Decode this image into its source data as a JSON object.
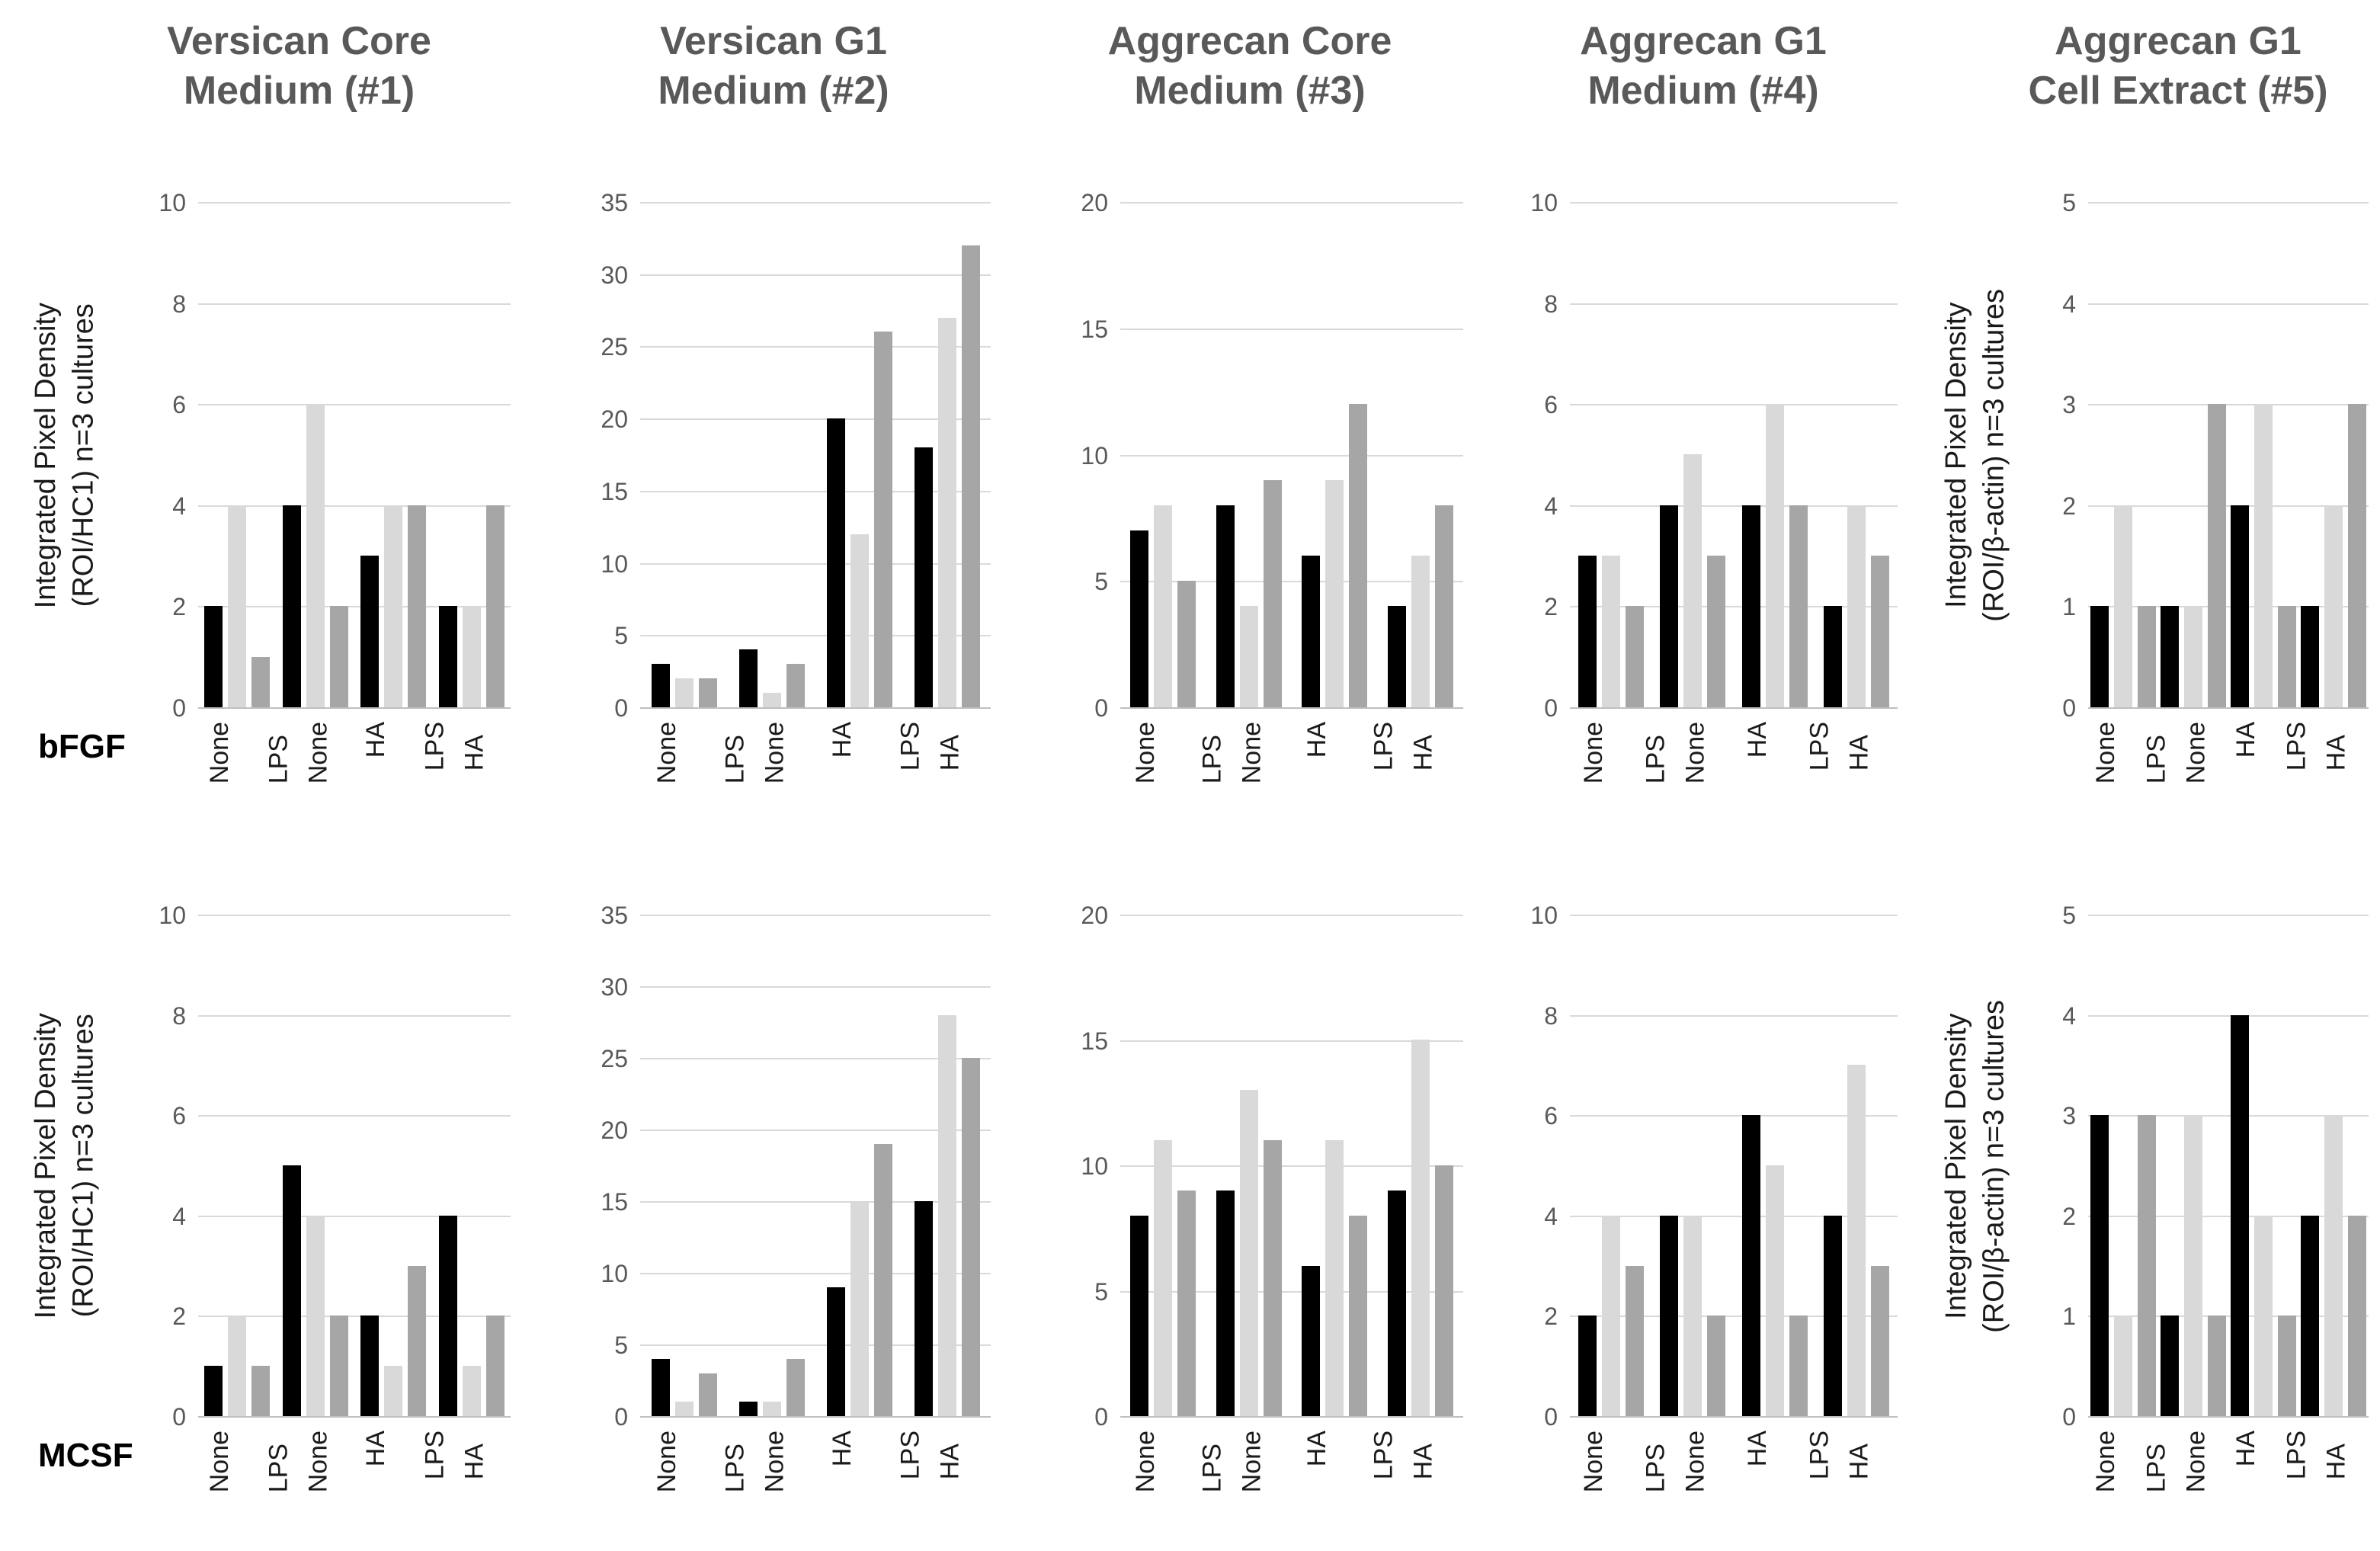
{
  "row_labels": [
    "bFGF",
    "MCSF"
  ],
  "series_colors": [
    "#000000",
    "#d9d9d9",
    "#a6a6a6"
  ],
  "series_names": [
    "black",
    "light gray",
    "medium gray"
  ],
  "text_colors": {
    "title": "#595959",
    "ticks": "#595959",
    "labels": "#1a1a1a",
    "gridline": "#d9d9d9"
  },
  "chart_data": [
    {
      "type": "bar",
      "row": "bFGF",
      "title": "Versican Core Medium (#1)",
      "title_lines": [
        "Versican Core",
        "Medium (#1)"
      ],
      "ylabel": "Integrated Pixel Density (ROI/HC1) n=3 cultures",
      "ylabel_lines": [
        "Integrated Pixel Density",
        "(ROI/HC1) n=3 cultures"
      ],
      "ylim": [
        0,
        10
      ],
      "yticks": [
        0,
        2,
        4,
        6,
        8,
        10
      ],
      "grid": true,
      "legend": "none",
      "categories": [
        "None",
        "LPS None",
        "HA",
        "LPS HA"
      ],
      "cat_label_lines": [
        [
          "None"
        ],
        [
          "LPS",
          "None"
        ],
        [
          "HA"
        ],
        [
          "LPS",
          "HA"
        ]
      ],
      "series": [
        {
          "name": "black",
          "values": [
            2,
            4,
            3,
            2
          ]
        },
        {
          "name": "light gray",
          "values": [
            4,
            6,
            4,
            2
          ]
        },
        {
          "name": "medium gray",
          "values": [
            1,
            2,
            4,
            4
          ]
        }
      ]
    },
    {
      "type": "bar",
      "row": "bFGF",
      "title": "Versican G1 Medium (#2)",
      "title_lines": [
        "Versican G1",
        "Medium (#2)"
      ],
      "ylim": [
        0,
        35
      ],
      "yticks": [
        0,
        5,
        10,
        15,
        20,
        25,
        30,
        35
      ],
      "grid": true,
      "legend": "none",
      "categories": [
        "None",
        "LPS None",
        "HA",
        "LPS HA"
      ],
      "cat_label_lines": [
        [
          "None"
        ],
        [
          "LPS",
          "None"
        ],
        [
          "HA"
        ],
        [
          "LPS",
          "HA"
        ]
      ],
      "series": [
        {
          "name": "black",
          "values": [
            3,
            4,
            20,
            18
          ]
        },
        {
          "name": "light gray",
          "values": [
            2,
            1,
            12,
            27
          ]
        },
        {
          "name": "medium gray",
          "values": [
            2,
            3,
            26,
            32
          ]
        }
      ]
    },
    {
      "type": "bar",
      "row": "bFGF",
      "title": "Aggrecan Core Medium (#3)",
      "title_lines": [
        "Aggrecan Core",
        "Medium (#3)"
      ],
      "ylim": [
        0,
        20
      ],
      "yticks": [
        0,
        5,
        10,
        15,
        20
      ],
      "grid": true,
      "legend": "none",
      "categories": [
        "None",
        "LPS None",
        "HA",
        "LPS HA"
      ],
      "cat_label_lines": [
        [
          "None"
        ],
        [
          "LPS",
          "None"
        ],
        [
          "HA"
        ],
        [
          "LPS",
          "HA"
        ]
      ],
      "series": [
        {
          "name": "black",
          "values": [
            7,
            8,
            6,
            4
          ]
        },
        {
          "name": "light gray",
          "values": [
            8,
            4,
            9,
            6
          ]
        },
        {
          "name": "medium gray",
          "values": [
            5,
            9,
            12,
            8
          ]
        }
      ]
    },
    {
      "type": "bar",
      "row": "bFGF",
      "title": "Aggrecan G1 Medium (#4)",
      "title_lines": [
        "Aggrecan G1",
        "Medium (#4)"
      ],
      "ylim": [
        0,
        10
      ],
      "yticks": [
        0,
        2,
        4,
        6,
        8,
        10
      ],
      "grid": true,
      "legend": "none",
      "categories": [
        "None",
        "LPS None",
        "HA",
        "LPS HA"
      ],
      "cat_label_lines": [
        [
          "None"
        ],
        [
          "LPS",
          "None"
        ],
        [
          "HA"
        ],
        [
          "LPS",
          "HA"
        ]
      ],
      "series": [
        {
          "name": "black",
          "values": [
            3,
            4,
            4,
            2
          ]
        },
        {
          "name": "light gray",
          "values": [
            3,
            5,
            6,
            4
          ]
        },
        {
          "name": "medium gray",
          "values": [
            2,
            3,
            4,
            3
          ]
        }
      ]
    },
    {
      "type": "bar",
      "row": "bFGF",
      "title": "Aggrecan G1 Cell Extract (#5)",
      "title_lines": [
        "Aggrecan G1",
        "Cell Extract (#5)"
      ],
      "ylabel": "Integrated Pixel Density (ROI/β-actin) n=3 cultures",
      "ylabel_lines": [
        "Integrated Pixel Density",
        "(ROI/β-actin) n=3 cultures"
      ],
      "ylim": [
        0,
        5
      ],
      "yticks": [
        0,
        1,
        2,
        3,
        4,
        5
      ],
      "grid": true,
      "legend": "none",
      "categories": [
        "None",
        "LPS None",
        "HA",
        "LPS HA"
      ],
      "cat_label_lines": [
        [
          "None"
        ],
        [
          "LPS",
          "None"
        ],
        [
          "HA"
        ],
        [
          "LPS",
          "HA"
        ]
      ],
      "series": [
        {
          "name": "black",
          "values": [
            1,
            1,
            2,
            1
          ]
        },
        {
          "name": "light gray",
          "values": [
            2,
            1,
            3,
            2
          ]
        },
        {
          "name": "medium gray",
          "values": [
            1,
            3,
            1,
            3
          ]
        }
      ]
    },
    {
      "type": "bar",
      "row": "MCSF",
      "title_lines": [],
      "ylabel": "Integrated Pixel Density (ROI/HC1) n=3 cultures",
      "ylabel_lines": [
        "Integrated Pixel Density",
        "(ROI/HC1) n=3 cultures"
      ],
      "ylim": [
        0,
        10
      ],
      "yticks": [
        0,
        2,
        4,
        6,
        8,
        10
      ],
      "grid": true,
      "legend": "none",
      "categories": [
        "None",
        "LPS None",
        "HA",
        "LPS HA"
      ],
      "cat_label_lines": [
        [
          "None"
        ],
        [
          "LPS",
          "None"
        ],
        [
          "HA"
        ],
        [
          "LPS",
          "HA"
        ]
      ],
      "series": [
        {
          "name": "black",
          "values": [
            1,
            5,
            2,
            4
          ]
        },
        {
          "name": "light gray",
          "values": [
            2,
            4,
            1,
            1
          ]
        },
        {
          "name": "medium gray",
          "values": [
            1,
            2,
            3,
            2
          ]
        }
      ]
    },
    {
      "type": "bar",
      "row": "MCSF",
      "title_lines": [],
      "ylim": [
        0,
        35
      ],
      "yticks": [
        0,
        5,
        10,
        15,
        20,
        25,
        30,
        35
      ],
      "grid": true,
      "legend": "none",
      "categories": [
        "None",
        "LPS None",
        "HA",
        "LPS HA"
      ],
      "cat_label_lines": [
        [
          "None"
        ],
        [
          "LPS",
          "None"
        ],
        [
          "HA"
        ],
        [
          "LPS",
          "HA"
        ]
      ],
      "series": [
        {
          "name": "black",
          "values": [
            4,
            1,
            9,
            15
          ]
        },
        {
          "name": "light gray",
          "values": [
            1,
            1,
            15,
            28
          ]
        },
        {
          "name": "medium gray",
          "values": [
            3,
            4,
            19,
            25
          ]
        }
      ]
    },
    {
      "type": "bar",
      "row": "MCSF",
      "title_lines": [],
      "ylim": [
        0,
        20
      ],
      "yticks": [
        0,
        5,
        10,
        15,
        20
      ],
      "grid": true,
      "legend": "none",
      "categories": [
        "None",
        "LPS None",
        "HA",
        "LPS HA"
      ],
      "cat_label_lines": [
        [
          "None"
        ],
        [
          "LPS",
          "None"
        ],
        [
          "HA"
        ],
        [
          "LPS",
          "HA"
        ]
      ],
      "series": [
        {
          "name": "black",
          "values": [
            8,
            9,
            6,
            9
          ]
        },
        {
          "name": "light gray",
          "values": [
            11,
            13,
            11,
            15
          ]
        },
        {
          "name": "medium gray",
          "values": [
            9,
            11,
            8,
            10
          ]
        }
      ]
    },
    {
      "type": "bar",
      "row": "MCSF",
      "title_lines": [],
      "ylim": [
        0,
        10
      ],
      "yticks": [
        0,
        2,
        4,
        6,
        8,
        10
      ],
      "grid": true,
      "legend": "none",
      "categories": [
        "None",
        "LPS None",
        "HA",
        "LPS HA"
      ],
      "cat_label_lines": [
        [
          "None"
        ],
        [
          "LPS",
          "None"
        ],
        [
          "HA"
        ],
        [
          "LPS",
          "HA"
        ]
      ],
      "series": [
        {
          "name": "black",
          "values": [
            2,
            4,
            6,
            4
          ]
        },
        {
          "name": "light gray",
          "values": [
            4,
            4,
            5,
            7
          ]
        },
        {
          "name": "medium gray",
          "values": [
            3,
            2,
            2,
            3
          ]
        }
      ]
    },
    {
      "type": "bar",
      "row": "MCSF",
      "title_lines": [],
      "ylabel": "Integrated Pixel Density (ROI/β-actin) n=3 cultures",
      "ylabel_lines": [
        "Integrated Pixel Density",
        "(ROI/β-actin) n=3 cultures"
      ],
      "ylim": [
        0,
        5
      ],
      "yticks": [
        0,
        1,
        2,
        3,
        4,
        5
      ],
      "grid": true,
      "legend": "none",
      "categories": [
        "None",
        "LPS None",
        "HA",
        "LPS HA"
      ],
      "cat_label_lines": [
        [
          "None"
        ],
        [
          "LPS",
          "None"
        ],
        [
          "HA"
        ],
        [
          "LPS",
          "HA"
        ]
      ],
      "series": [
        {
          "name": "black",
          "values": [
            3,
            1,
            4,
            2
          ]
        },
        {
          "name": "light gray",
          "values": [
            1,
            3,
            2,
            3
          ]
        },
        {
          "name": "medium gray",
          "values": [
            3,
            1,
            1,
            2
          ]
        }
      ]
    }
  ]
}
